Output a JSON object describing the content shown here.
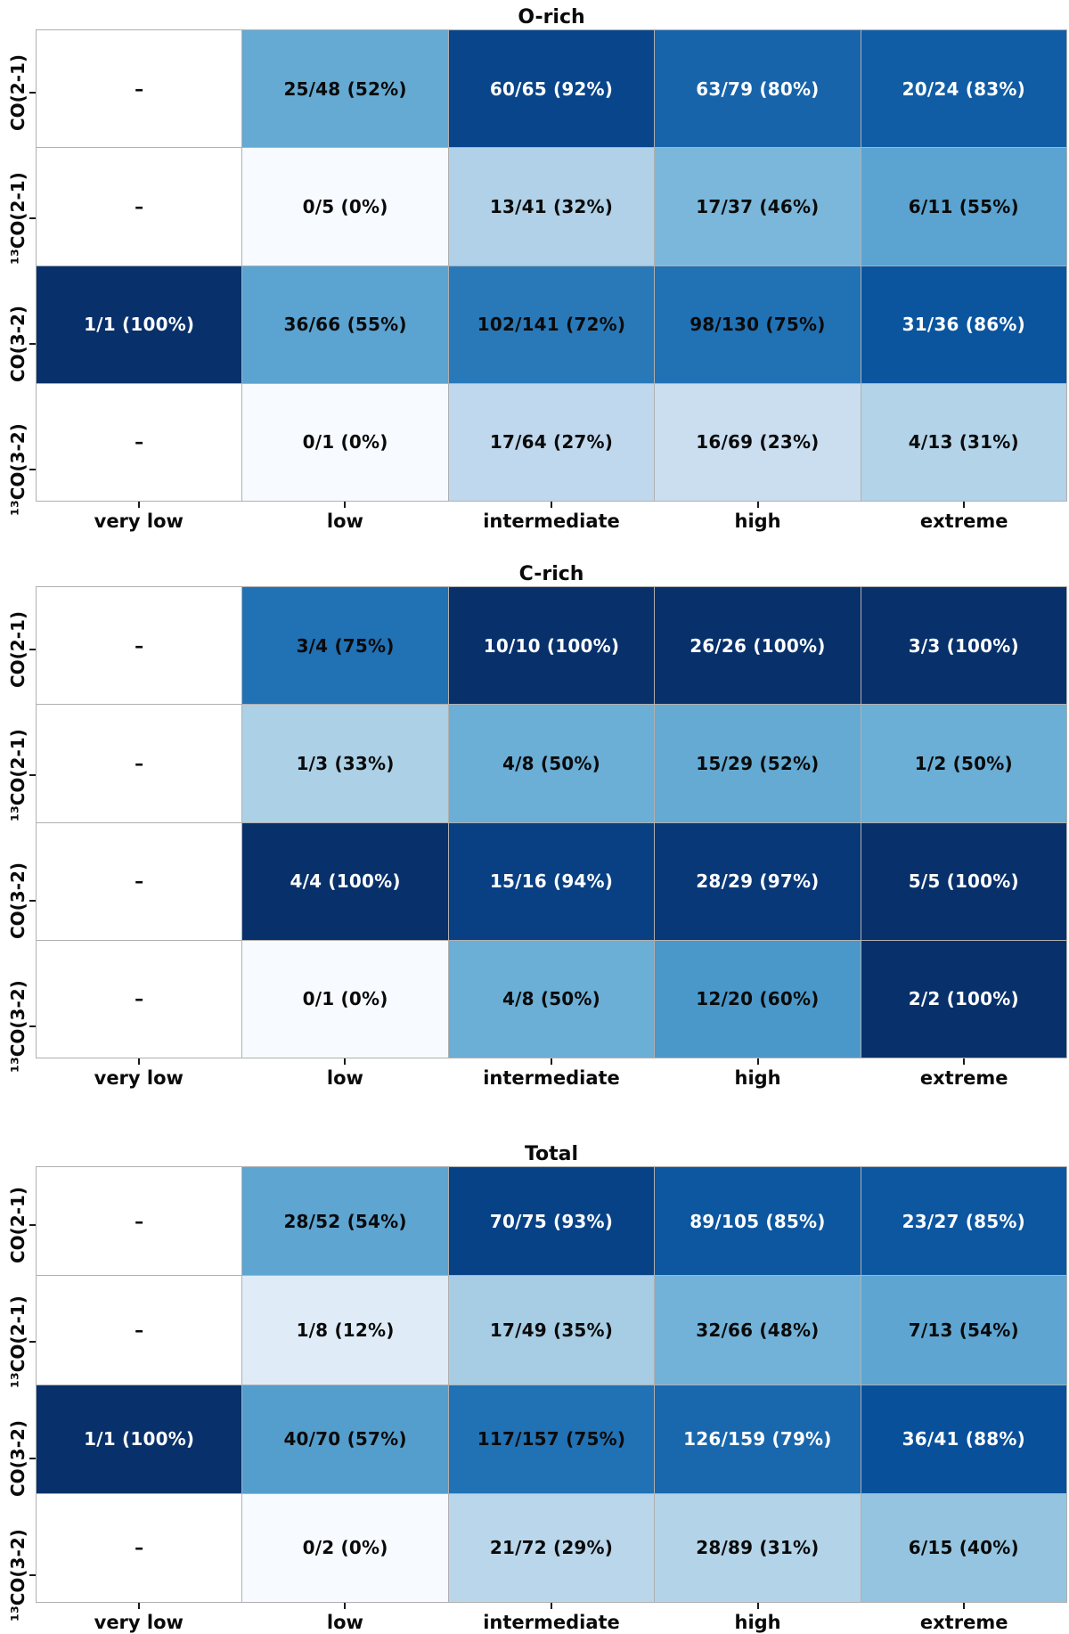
{
  "figure": {
    "background": "#ffffff",
    "grid_line_color": "#b0b0b0",
    "tick_color": "#1a1a1a",
    "annotation_black": "#0a0a0a",
    "annotation_white": "#ffffff",
    "colormap": {
      "name": "Blues",
      "vmin": 0,
      "vmax": 100,
      "empty_color": "#ffffff",
      "white_text_threshold": 78,
      "anchors": [
        {
          "t": 0.0,
          "color": "#f7fbff"
        },
        {
          "t": 0.125,
          "color": "#deebf7"
        },
        {
          "t": 0.25,
          "color": "#c6dbef"
        },
        {
          "t": 0.375,
          "color": "#9ecae1"
        },
        {
          "t": 0.5,
          "color": "#6baed6"
        },
        {
          "t": 0.625,
          "color": "#4292c6"
        },
        {
          "t": 0.75,
          "color": "#2171b5"
        },
        {
          "t": 0.875,
          "color": "#08519c"
        },
        {
          "t": 1.0,
          "color": "#08306b"
        }
      ]
    }
  },
  "chart_data": [
    {
      "type": "heatmap",
      "title": "O-rich",
      "x_categories": [
        "very low",
        "low",
        "intermediate",
        "high",
        "extreme"
      ],
      "y_categories": [
        "CO(2-1)",
        "¹³CO(2-1)",
        "CO(3-2)",
        "¹³CO(3-2)"
      ],
      "value_format": "detected/total (pct%)",
      "vmin": 0,
      "vmax": 100,
      "rows": [
        [
          {
            "label": "–",
            "detected": null,
            "total": null,
            "pct": null
          },
          {
            "label": "25/48 (52%)",
            "detected": 25,
            "total": 48,
            "pct": 52
          },
          {
            "label": "60/65 (92%)",
            "detected": 60,
            "total": 65,
            "pct": 92
          },
          {
            "label": "63/79 (80%)",
            "detected": 63,
            "total": 79,
            "pct": 80
          },
          {
            "label": "20/24 (83%)",
            "detected": 20,
            "total": 24,
            "pct": 83
          }
        ],
        [
          {
            "label": "–",
            "detected": null,
            "total": null,
            "pct": null
          },
          {
            "label": "0/5 (0%)",
            "detected": 0,
            "total": 5,
            "pct": 0
          },
          {
            "label": "13/41 (32%)",
            "detected": 13,
            "total": 41,
            "pct": 32
          },
          {
            "label": "17/37 (46%)",
            "detected": 17,
            "total": 37,
            "pct": 46
          },
          {
            "label": "6/11 (55%)",
            "detected": 6,
            "total": 11,
            "pct": 55
          }
        ],
        [
          {
            "label": "1/1 (100%)",
            "detected": 1,
            "total": 1,
            "pct": 100
          },
          {
            "label": "36/66 (55%)",
            "detected": 36,
            "total": 66,
            "pct": 55
          },
          {
            "label": "102/141 (72%)",
            "detected": 102,
            "total": 141,
            "pct": 72
          },
          {
            "label": "98/130 (75%)",
            "detected": 98,
            "total": 130,
            "pct": 75
          },
          {
            "label": "31/36 (86%)",
            "detected": 31,
            "total": 36,
            "pct": 86
          }
        ],
        [
          {
            "label": "–",
            "detected": null,
            "total": null,
            "pct": null
          },
          {
            "label": "0/1 (0%)",
            "detected": 0,
            "total": 1,
            "pct": 0
          },
          {
            "label": "17/64 (27%)",
            "detected": 17,
            "total": 64,
            "pct": 27
          },
          {
            "label": "16/69 (23%)",
            "detected": 16,
            "total": 69,
            "pct": 23
          },
          {
            "label": "4/13 (31%)",
            "detected": 4,
            "total": 13,
            "pct": 31
          }
        ]
      ]
    },
    {
      "type": "heatmap",
      "title": "C-rich",
      "x_categories": [
        "very low",
        "low",
        "intermediate",
        "high",
        "extreme"
      ],
      "y_categories": [
        "CO(2-1)",
        "¹³CO(2-1)",
        "CO(3-2)",
        "¹³CO(3-2)"
      ],
      "value_format": "detected/total (pct%)",
      "vmin": 0,
      "vmax": 100,
      "rows": [
        [
          {
            "label": "–",
            "detected": null,
            "total": null,
            "pct": null
          },
          {
            "label": "3/4 (75%)",
            "detected": 3,
            "total": 4,
            "pct": 75
          },
          {
            "label": "10/10 (100%)",
            "detected": 10,
            "total": 10,
            "pct": 100
          },
          {
            "label": "26/26 (100%)",
            "detected": 26,
            "total": 26,
            "pct": 100
          },
          {
            "label": "3/3 (100%)",
            "detected": 3,
            "total": 3,
            "pct": 100
          }
        ],
        [
          {
            "label": "–",
            "detected": null,
            "total": null,
            "pct": null
          },
          {
            "label": "1/3 (33%)",
            "detected": 1,
            "total": 3,
            "pct": 33
          },
          {
            "label": "4/8 (50%)",
            "detected": 4,
            "total": 8,
            "pct": 50
          },
          {
            "label": "15/29 (52%)",
            "detected": 15,
            "total": 29,
            "pct": 52
          },
          {
            "label": "1/2 (50%)",
            "detected": 1,
            "total": 2,
            "pct": 50
          }
        ],
        [
          {
            "label": "–",
            "detected": null,
            "total": null,
            "pct": null
          },
          {
            "label": "4/4 (100%)",
            "detected": 4,
            "total": 4,
            "pct": 100
          },
          {
            "label": "15/16 (94%)",
            "detected": 15,
            "total": 16,
            "pct": 94
          },
          {
            "label": "28/29 (97%)",
            "detected": 28,
            "total": 29,
            "pct": 97
          },
          {
            "label": "5/5 (100%)",
            "detected": 5,
            "total": 5,
            "pct": 100
          }
        ],
        [
          {
            "label": "–",
            "detected": null,
            "total": null,
            "pct": null
          },
          {
            "label": "0/1 (0%)",
            "detected": 0,
            "total": 1,
            "pct": 0
          },
          {
            "label": "4/8 (50%)",
            "detected": 4,
            "total": 8,
            "pct": 50
          },
          {
            "label": "12/20 (60%)",
            "detected": 12,
            "total": 20,
            "pct": 60
          },
          {
            "label": "2/2 (100%)",
            "detected": 2,
            "total": 2,
            "pct": 100
          }
        ]
      ]
    },
    {
      "type": "heatmap",
      "title": "Total",
      "x_categories": [
        "very low",
        "low",
        "intermediate",
        "high",
        "extreme"
      ],
      "y_categories": [
        "CO(2-1)",
        "¹³CO(2-1)",
        "CO(3-2)",
        "¹³CO(3-2)"
      ],
      "value_format": "detected/total (pct%)",
      "vmin": 0,
      "vmax": 100,
      "rows": [
        [
          {
            "label": "–",
            "detected": null,
            "total": null,
            "pct": null
          },
          {
            "label": "28/52 (54%)",
            "detected": 28,
            "total": 52,
            "pct": 54
          },
          {
            "label": "70/75 (93%)",
            "detected": 70,
            "total": 75,
            "pct": 93
          },
          {
            "label": "89/105 (85%)",
            "detected": 89,
            "total": 105,
            "pct": 85
          },
          {
            "label": "23/27 (85%)",
            "detected": 23,
            "total": 27,
            "pct": 85
          }
        ],
        [
          {
            "label": "–",
            "detected": null,
            "total": null,
            "pct": null
          },
          {
            "label": "1/8 (12%)",
            "detected": 1,
            "total": 8,
            "pct": 12
          },
          {
            "label": "17/49 (35%)",
            "detected": 17,
            "total": 49,
            "pct": 35
          },
          {
            "label": "32/66 (48%)",
            "detected": 32,
            "total": 66,
            "pct": 48
          },
          {
            "label": "7/13 (54%)",
            "detected": 7,
            "total": 13,
            "pct": 54
          }
        ],
        [
          {
            "label": "1/1 (100%)",
            "detected": 1,
            "total": 1,
            "pct": 100
          },
          {
            "label": "40/70 (57%)",
            "detected": 40,
            "total": 70,
            "pct": 57
          },
          {
            "label": "117/157 (75%)",
            "detected": 117,
            "total": 157,
            "pct": 75
          },
          {
            "label": "126/159 (79%)",
            "detected": 126,
            "total": 159,
            "pct": 79
          },
          {
            "label": "36/41 (88%)",
            "detected": 36,
            "total": 41,
            "pct": 88
          }
        ],
        [
          {
            "label": "–",
            "detected": null,
            "total": null,
            "pct": null
          },
          {
            "label": "0/2 (0%)",
            "detected": 0,
            "total": 2,
            "pct": 0
          },
          {
            "label": "21/72 (29%)",
            "detected": 21,
            "total": 72,
            "pct": 29
          },
          {
            "label": "28/89 (31%)",
            "detected": 28,
            "total": 89,
            "pct": 31
          },
          {
            "label": "6/15 (40%)",
            "detected": 6,
            "total": 15,
            "pct": 40
          }
        ]
      ]
    }
  ]
}
